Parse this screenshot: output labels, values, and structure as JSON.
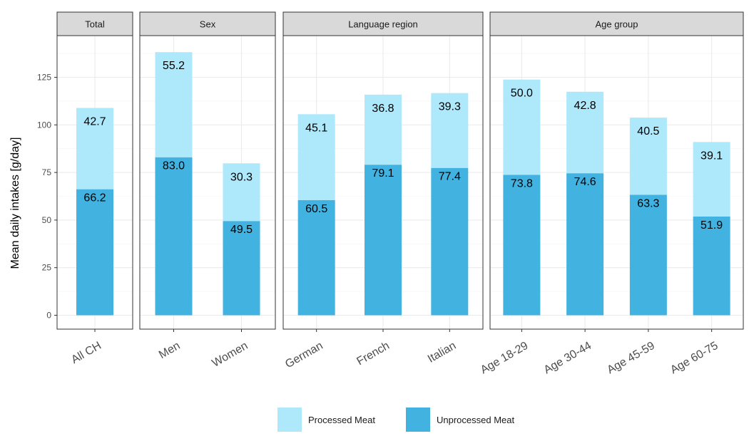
{
  "chart_data": {
    "type": "bar",
    "stacked": true,
    "ylabel": "Mean daily intakes [g/day]",
    "ylim": [
      0,
      140
    ],
    "yticks": [
      0,
      25,
      50,
      75,
      100,
      125
    ],
    "grid": true,
    "legend_position": "bottom",
    "colors": {
      "processed": "#ade8fb",
      "unprocessed": "#42b2e0"
    },
    "series": [
      {
        "name": "Processed Meat",
        "key": "processed"
      },
      {
        "name": "Unprocessed Meat",
        "key": "unprocessed"
      }
    ],
    "panels": [
      {
        "title": "Total",
        "categories": [
          {
            "name": "All CH",
            "unprocessed": 66.2,
            "processed": 42.7
          }
        ]
      },
      {
        "title": "Sex",
        "categories": [
          {
            "name": "Men",
            "unprocessed": 83.0,
            "processed": 55.2
          },
          {
            "name": "Women",
            "unprocessed": 49.5,
            "processed": 30.3
          }
        ]
      },
      {
        "title": "Language region",
        "categories": [
          {
            "name": "German",
            "unprocessed": 60.5,
            "processed": 45.1
          },
          {
            "name": "French",
            "unprocessed": 79.1,
            "processed": 36.8
          },
          {
            "name": "Italian",
            "unprocessed": 77.4,
            "processed": 39.3
          }
        ]
      },
      {
        "title": "Age group",
        "categories": [
          {
            "name": "Age 18-29",
            "unprocessed": 73.8,
            "processed": 50.0
          },
          {
            "name": "Age 30-44",
            "unprocessed": 74.6,
            "processed": 42.8
          },
          {
            "name": "Age 45-59",
            "unprocessed": 63.3,
            "processed": 40.5
          },
          {
            "name": "Age 60-75",
            "unprocessed": 51.9,
            "processed": 39.1
          }
        ]
      }
    ]
  }
}
